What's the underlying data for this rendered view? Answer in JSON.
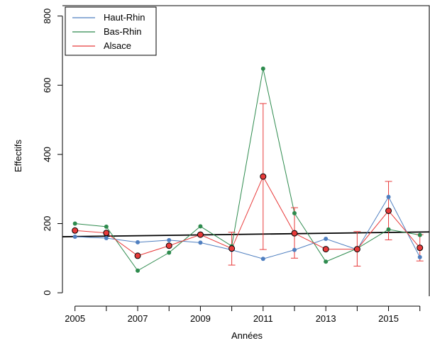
{
  "chart_data": {
    "type": "line",
    "title": "",
    "xlabel": "Années",
    "ylabel": "Effectifs",
    "xlim": [
      2004.6,
      2016.3
    ],
    "ylim": [
      -10,
      830
    ],
    "x": [
      2005,
      2006,
      2007,
      2008,
      2009,
      2010,
      2011,
      2012,
      2013,
      2014,
      2015,
      2016
    ],
    "x_ticks": [
      2005,
      2007,
      2009,
      2011,
      2013,
      2015
    ],
    "x_ticks_unlabeled": [
      2006,
      2008,
      2010,
      2012,
      2014,
      2016
    ],
    "y_ticks": [
      0,
      200,
      400,
      600,
      800
    ],
    "grid": false,
    "legend_position": "top-left",
    "series": [
      {
        "name": "Haut-Rhin",
        "color": "#4f7fc0",
        "values": [
          162,
          158,
          146,
          152,
          145,
          124,
          98,
          124,
          156,
          125,
          277,
          103
        ]
      },
      {
        "name": "Bas-Rhin",
        "color": "#2e8b4e",
        "values": [
          200,
          191,
          64,
          116,
          192,
          135,
          648,
          230,
          90,
          128,
          183,
          167
        ]
      },
      {
        "name": "Alsace",
        "color": "#e83a3a",
        "values": [
          180,
          173,
          107,
          136,
          168,
          128,
          336,
          172,
          126,
          126,
          237,
          130
        ],
        "error_low": [
          null,
          null,
          null,
          null,
          null,
          80,
          125,
          100,
          null,
          77,
          153,
          92
        ],
        "error_high": [
          null,
          null,
          null,
          null,
          null,
          175,
          547,
          246,
          null,
          177,
          322,
          168
        ]
      }
    ],
    "trend_line": {
      "color": "#000000",
      "from": [
        2004.6,
        162
      ],
      "to": [
        2016.3,
        176
      ]
    }
  }
}
